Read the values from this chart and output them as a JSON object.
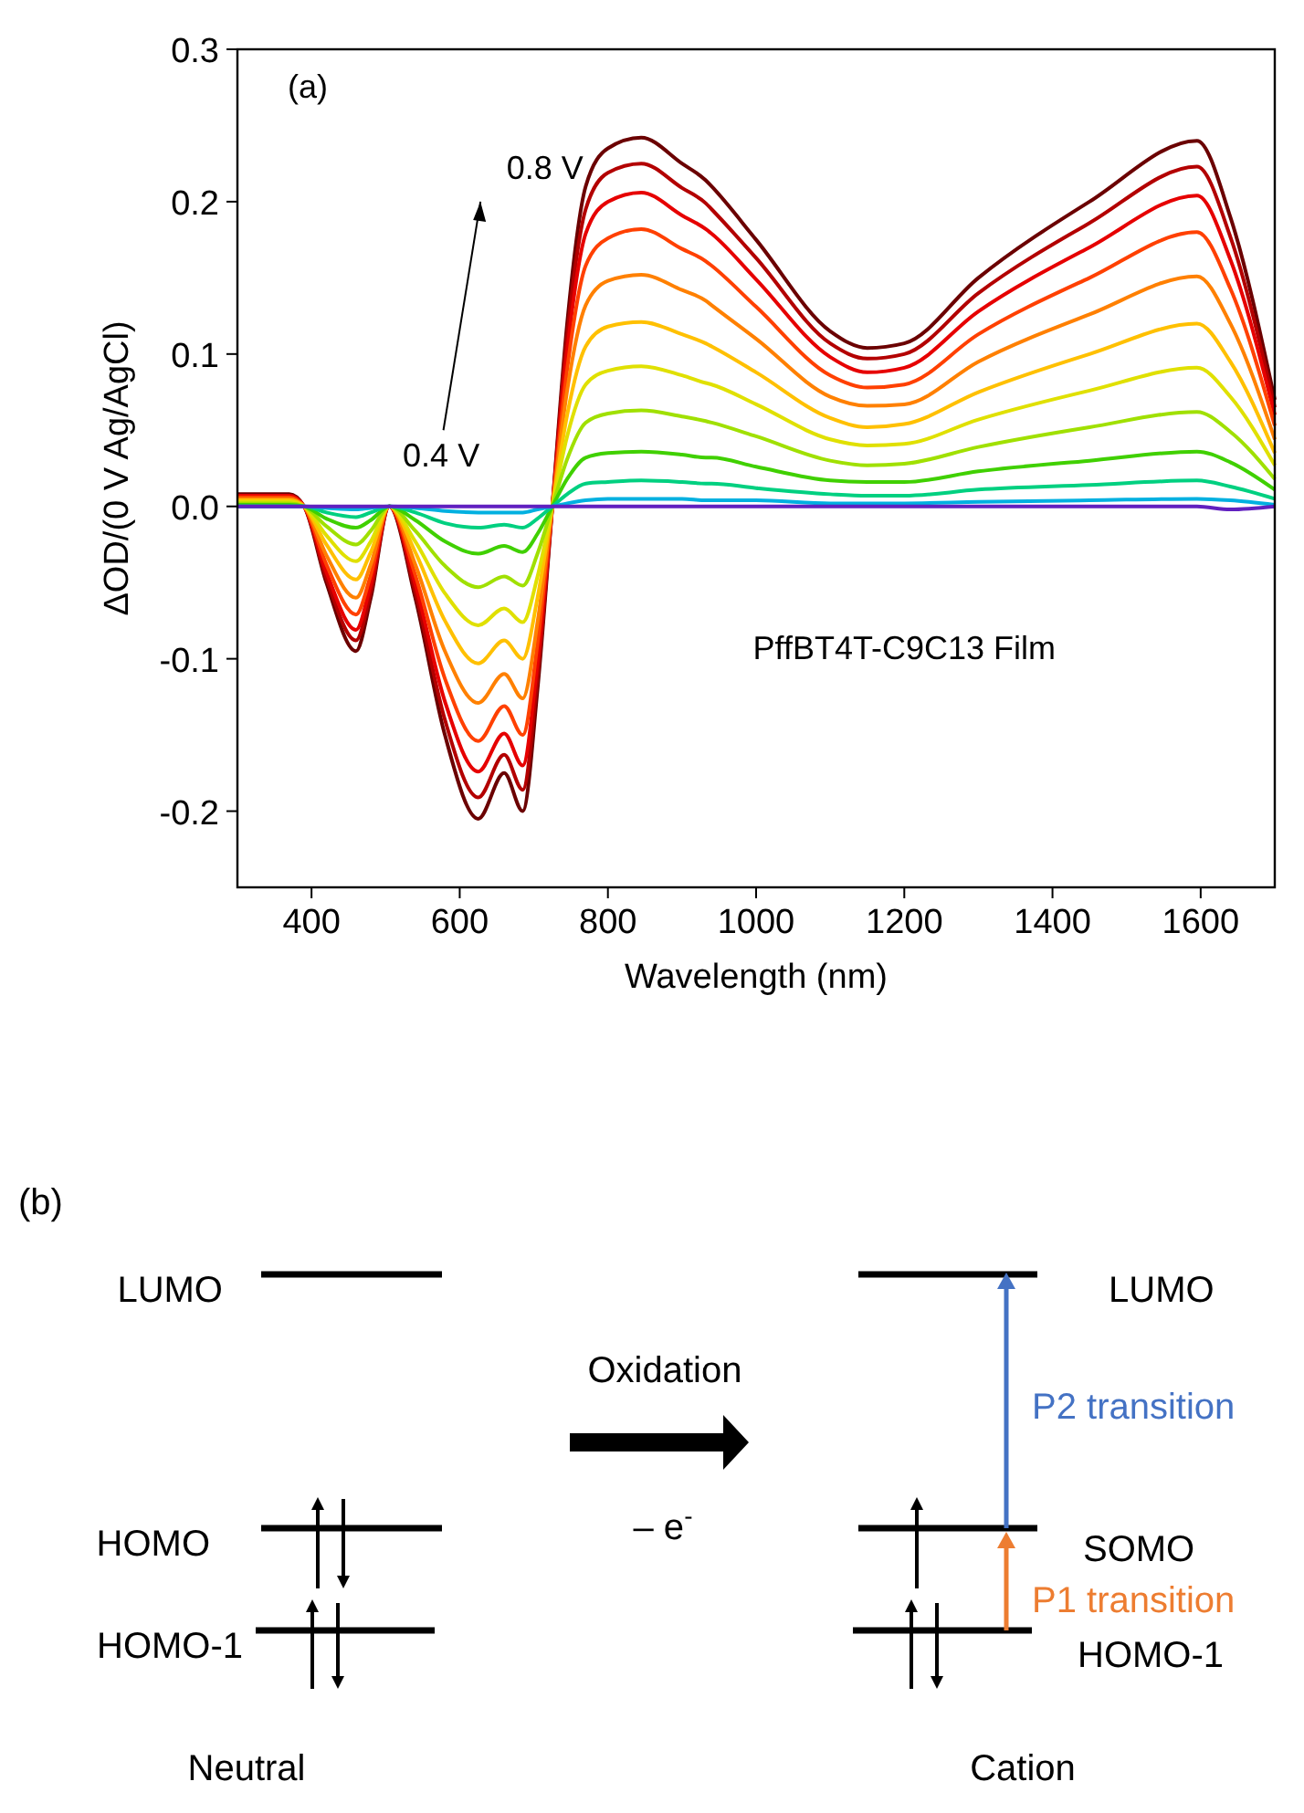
{
  "chart_data": [
    {
      "type": "line",
      "xlabel": "Wavelength (nm)",
      "ylabel": "ΔOD/(0 V Ag/AgCl)",
      "x": [
        300,
        370,
        390,
        420,
        460,
        480,
        505,
        540,
        580,
        625,
        660,
        685,
        705,
        725,
        745,
        770,
        800,
        845,
        900,
        932,
        940,
        1000,
        1100,
        1150,
        1200,
        1300,
        1450,
        1595,
        1640,
        1700
      ],
      "xlim": [
        300,
        1700
      ],
      "xticks": [
        400,
        600,
        800,
        1000,
        1200,
        1400,
        1600
      ],
      "ylim": [
        -0.25,
        0.3
      ],
      "yticks": [
        -0.2,
        -0.1,
        {
          "value": 0,
          "label": "0.0"
        },
        0.1,
        0.2,
        0.3
      ],
      "marker": "none",
      "line_style": "solid",
      "annotations": [
        "(a)",
        "0.8 V",
        "0.4 V",
        "PffBT4T-C9C13 Film"
      ],
      "series": [
        {
          "color": "#6b0000",
          "values": [
            0.008,
            0.008,
            0,
            -0.05,
            -0.095,
            -0.06,
            0,
            -0.06,
            -0.15,
            -0.205,
            -0.175,
            -0.2,
            -0.12,
            0,
            0.12,
            0.21,
            0.235,
            0.242,
            0.225,
            0.214,
            0.21,
            0.175,
            0.115,
            0.104,
            0.107,
            0.15,
            0.2,
            0.24,
            0.19,
            0.07
          ]
        },
        {
          "color": "#b30000",
          "values": [
            0.007,
            0.007,
            0,
            -0.047,
            -0.088,
            -0.056,
            0,
            -0.056,
            -0.14,
            -0.191,
            -0.163,
            -0.186,
            -0.112,
            0,
            0.112,
            0.195,
            0.219,
            0.225,
            0.209,
            0.199,
            0.195,
            0.163,
            0.107,
            0.097,
            0.1,
            0.14,
            0.186,
            0.223,
            0.177,
            0.065
          ]
        },
        {
          "color": "#e60000",
          "values": [
            0.007,
            0.007,
            0,
            -0.043,
            -0.081,
            -0.051,
            0,
            -0.051,
            -0.128,
            -0.174,
            -0.149,
            -0.17,
            -0.102,
            0,
            0.102,
            0.179,
            0.2,
            0.206,
            0.191,
            0.182,
            0.179,
            0.149,
            0.098,
            0.088,
            0.091,
            0.128,
            0.17,
            0.204,
            0.162,
            0.06
          ]
        },
        {
          "color": "#ff4000",
          "values": [
            0.006,
            0.006,
            0,
            -0.038,
            -0.071,
            -0.045,
            0,
            -0.045,
            -0.113,
            -0.154,
            -0.131,
            -0.15,
            -0.09,
            0,
            0.09,
            0.158,
            0.176,
            0.182,
            0.169,
            0.161,
            0.158,
            0.131,
            0.086,
            0.078,
            0.08,
            0.113,
            0.15,
            0.18,
            0.143,
            0.053
          ]
        },
        {
          "color": "#ff8000",
          "values": [
            0.005,
            0.005,
            0,
            -0.032,
            -0.06,
            -0.038,
            0,
            -0.038,
            -0.095,
            -0.129,
            -0.11,
            -0.126,
            -0.076,
            0,
            0.076,
            0.132,
            0.148,
            0.152,
            0.142,
            0.135,
            0.132,
            0.11,
            0.072,
            0.066,
            0.067,
            0.095,
            0.126,
            0.151,
            0.12,
            0.044
          ]
        },
        {
          "color": "#ffc000",
          "values": [
            0.004,
            0.004,
            0,
            -0.025,
            -0.048,
            -0.03,
            0,
            -0.03,
            -0.075,
            -0.103,
            -0.088,
            -0.1,
            -0.06,
            0,
            0.06,
            0.105,
            0.118,
            0.121,
            0.113,
            0.107,
            0.105,
            0.088,
            0.058,
            0.052,
            0.054,
            0.075,
            0.1,
            0.12,
            0.095,
            0.035
          ]
        },
        {
          "color": "#e0e000",
          "values": [
            0.003,
            0.003,
            0,
            -0.019,
            -0.036,
            -0.023,
            0,
            -0.023,
            -0.057,
            -0.078,
            -0.067,
            -0.076,
            -0.046,
            0,
            0.046,
            0.08,
            0.089,
            0.092,
            0.086,
            0.081,
            0.08,
            0.067,
            0.044,
            0.04,
            0.041,
            0.057,
            0.076,
            0.091,
            0.072,
            0.027
          ]
        },
        {
          "color": "#a0e000",
          "values": [
            0.002,
            0.002,
            0,
            -0.013,
            -0.025,
            -0.016,
            0,
            -0.016,
            -0.039,
            -0.053,
            -0.046,
            -0.052,
            -0.031,
            0,
            0.031,
            0.055,
            0.061,
            0.063,
            0.059,
            0.056,
            0.055,
            0.046,
            0.03,
            0.027,
            0.028,
            0.039,
            0.052,
            0.062,
            0.049,
            0.018
          ]
        },
        {
          "color": "#40d000",
          "values": [
            0.001,
            0.001,
            0,
            -0.008,
            -0.014,
            -0.009,
            0,
            -0.009,
            -0.023,
            -0.031,
            -0.026,
            -0.03,
            -0.018,
            0,
            0.018,
            0.032,
            0.035,
            0.036,
            0.034,
            0.032,
            0.032,
            0.026,
            0.017,
            0.016,
            0.016,
            0.023,
            0.03,
            0.036,
            0.029,
            0.011
          ]
        },
        {
          "color": "#00d080",
          "values": [
            0,
            0,
            0,
            -0.004,
            -0.007,
            -0.004,
            0,
            -0.004,
            -0.011,
            -0.014,
            -0.012,
            -0.014,
            -0.008,
            0,
            0.008,
            0.015,
            0.016,
            0.017,
            0.016,
            0.015,
            0.015,
            0.012,
            0.008,
            0.007,
            0.007,
            0.011,
            0.014,
            0.017,
            0.013,
            0.005
          ]
        },
        {
          "color": "#00b0e0",
          "values": [
            0,
            0,
            0,
            -0.001,
            -0.002,
            -0.001,
            0,
            -0.001,
            -0.003,
            -0.004,
            -0.004,
            -0.004,
            -0.002,
            0,
            0.002,
            0.004,
            0.005,
            0.005,
            0.005,
            0.004,
            0.004,
            0.004,
            0.002,
            0.002,
            0.002,
            0.003,
            0.004,
            0.005,
            0.004,
            0.001
          ]
        },
        {
          "color": "#6020c0",
          "values": [
            0,
            0,
            0,
            0,
            0,
            0,
            0,
            0,
            0,
            0,
            0,
            0,
            0,
            0,
            0,
            0,
            0,
            0,
            0,
            0,
            0,
            0,
            0,
            0,
            0,
            0,
            0,
            0,
            -0.002,
            0
          ]
        }
      ]
    },
    {
      "type": "other",
      "annotations": [
        "(b)",
        "LUMO",
        "HOMO",
        "HOMO-1",
        "Oxidation",
        "– e$^{-}$",
        "LUMO",
        "SOMO",
        "HOMO-1",
        "P2 transition",
        "P1 transition",
        "Neutral",
        "Cation"
      ]
    }
  ]
}
